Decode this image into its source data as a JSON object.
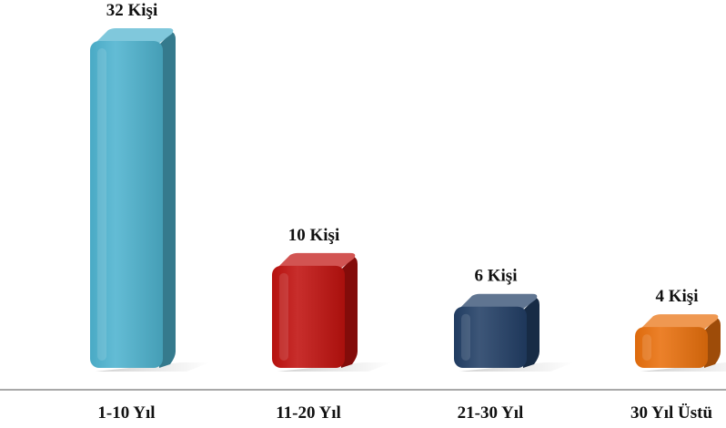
{
  "chart_data": {
    "type": "bar",
    "categories": [
      "1-10 Yıl",
      "11-20 Yıl",
      "21-30 Yıl",
      "30 Yıl Üstü"
    ],
    "values": [
      32,
      10,
      6,
      4
    ],
    "value_labels": [
      "32 Kişi",
      "10 Kişi",
      "6 Kişi",
      "4 Kişi"
    ],
    "colors": [
      "#4eb3cf",
      "#c0120f",
      "#223f66",
      "#e9700d"
    ],
    "title": "",
    "xlabel": "",
    "ylabel": "",
    "ylim": [
      0,
      32
    ],
    "grid": false,
    "legend": "none"
  }
}
